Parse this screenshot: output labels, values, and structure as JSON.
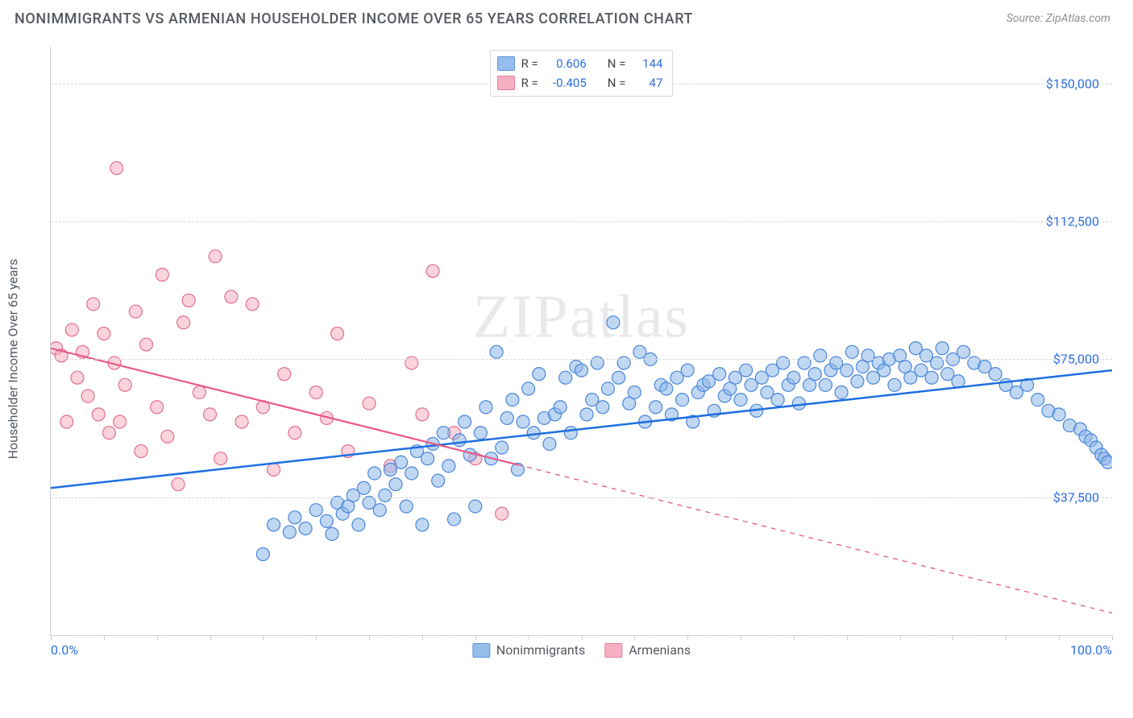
{
  "title": "NONIMMIGRANTS VS ARMENIAN HOUSEHOLDER INCOME OVER 65 YEARS CORRELATION CHART",
  "source": "Source: ZipAtlas.com",
  "watermark": "ZIPatlas",
  "chart": {
    "type": "scatter",
    "xlim": [
      0,
      100
    ],
    "ylim": [
      0,
      160000
    ],
    "x_tick_count": 20,
    "x_tick_labels": {
      "0": "0.0%",
      "100": "100.0%"
    },
    "y_gridlines": [
      0,
      37500,
      75000,
      112500,
      150000
    ],
    "y_tick_labels": {
      "37500": "$37,500",
      "75000": "$75,000",
      "112500": "$112,500",
      "150000": "$150,000"
    },
    "ylabel": "Householder Income Over 65 years",
    "background_color": "#ffffff",
    "grid_color": "#d6d8db",
    "axis_color": "#c9ccd0",
    "marker_radius": 8,
    "marker_stroke_width": 1.2,
    "series": [
      {
        "name": "Nonimmigrants",
        "fill": "#8cb6ea",
        "fill_opacity": 0.55,
        "stroke": "#4a86d8",
        "r_label": "R =",
        "n_label": "N =",
        "R": "0.606",
        "N": "144",
        "trend": {
          "x1": 0,
          "y1": 40000,
          "x2": 100,
          "y2": 72000,
          "solid_to_x": 100,
          "color": "#1f6fe0",
          "width": 2.5
        },
        "points": [
          [
            20,
            22000
          ],
          [
            21,
            30000
          ],
          [
            22.5,
            28000
          ],
          [
            23,
            32000
          ],
          [
            24,
            29000
          ],
          [
            25,
            34000
          ],
          [
            26,
            31000
          ],
          [
            26.5,
            27500
          ],
          [
            27,
            36000
          ],
          [
            27.5,
            33000
          ],
          [
            28,
            35000
          ],
          [
            28.5,
            38000
          ],
          [
            29,
            30000
          ],
          [
            29.5,
            40000
          ],
          [
            30,
            36000
          ],
          [
            30.5,
            44000
          ],
          [
            31,
            34000
          ],
          [
            31.5,
            38000
          ],
          [
            32,
            45000
          ],
          [
            32.5,
            41000
          ],
          [
            33,
            47000
          ],
          [
            33.5,
            35000
          ],
          [
            34,
            44000
          ],
          [
            34.5,
            50000
          ],
          [
            35,
            30000
          ],
          [
            35.5,
            48000
          ],
          [
            36,
            52000
          ],
          [
            36.5,
            42000
          ],
          [
            37,
            55000
          ],
          [
            37.5,
            46000
          ],
          [
            38,
            31500
          ],
          [
            38.5,
            53000
          ],
          [
            39,
            58000
          ],
          [
            39.5,
            49000
          ],
          [
            40,
            35000
          ],
          [
            40.5,
            55000
          ],
          [
            41,
            62000
          ],
          [
            41.5,
            48000
          ],
          [
            42,
            77000
          ],
          [
            42.5,
            51000
          ],
          [
            43,
            59000
          ],
          [
            43.5,
            64000
          ],
          [
            44,
            45000
          ],
          [
            44.5,
            58000
          ],
          [
            45,
            67000
          ],
          [
            45.5,
            55000
          ],
          [
            46,
            71000
          ],
          [
            46.5,
            59000
          ],
          [
            47,
            52000
          ],
          [
            47.5,
            60000
          ],
          [
            48,
            62000
          ],
          [
            48.5,
            70000
          ],
          [
            49,
            55000
          ],
          [
            49.5,
            73000
          ],
          [
            50,
            72000
          ],
          [
            50.5,
            60000
          ],
          [
            51,
            64000
          ],
          [
            51.5,
            74000
          ],
          [
            52,
            62000
          ],
          [
            52.5,
            67000
          ],
          [
            53,
            85000
          ],
          [
            53.5,
            70000
          ],
          [
            54,
            74000
          ],
          [
            54.5,
            63000
          ],
          [
            55,
            66000
          ],
          [
            55.5,
            77000
          ],
          [
            56,
            58000
          ],
          [
            56.5,
            75000
          ],
          [
            57,
            62000
          ],
          [
            57.5,
            68000
          ],
          [
            58,
            67000
          ],
          [
            58.5,
            60000
          ],
          [
            59,
            70000
          ],
          [
            59.5,
            64000
          ],
          [
            60,
            72000
          ],
          [
            60.5,
            58000
          ],
          [
            61,
            66000
          ],
          [
            61.5,
            68000
          ],
          [
            62,
            69000
          ],
          [
            62.5,
            61000
          ],
          [
            63,
            71000
          ],
          [
            63.5,
            65000
          ],
          [
            64,
            67000
          ],
          [
            64.5,
            70000
          ],
          [
            65,
            64000
          ],
          [
            65.5,
            72000
          ],
          [
            66,
            68000
          ],
          [
            66.5,
            61000
          ],
          [
            67,
            70000
          ],
          [
            67.5,
            66000
          ],
          [
            68,
            72000
          ],
          [
            68.5,
            64000
          ],
          [
            69,
            74000
          ],
          [
            69.5,
            68000
          ],
          [
            70,
            70000
          ],
          [
            70.5,
            63000
          ],
          [
            71,
            74000
          ],
          [
            71.5,
            68000
          ],
          [
            72,
            71000
          ],
          [
            72.5,
            76000
          ],
          [
            73,
            68000
          ],
          [
            73.5,
            72000
          ],
          [
            74,
            74000
          ],
          [
            74.5,
            66000
          ],
          [
            75,
            72000
          ],
          [
            75.5,
            77000
          ],
          [
            76,
            69000
          ],
          [
            76.5,
            73000
          ],
          [
            77,
            76000
          ],
          [
            77.5,
            70000
          ],
          [
            78,
            74000
          ],
          [
            78.5,
            72000
          ],
          [
            79,
            75000
          ],
          [
            79.5,
            68000
          ],
          [
            80,
            76000
          ],
          [
            80.5,
            73000
          ],
          [
            81,
            70000
          ],
          [
            81.5,
            78000
          ],
          [
            82,
            72000
          ],
          [
            82.5,
            76000
          ],
          [
            83,
            70000
          ],
          [
            83.5,
            74000
          ],
          [
            84,
            78000
          ],
          [
            84.5,
            71000
          ],
          [
            85,
            75000
          ],
          [
            85.5,
            69000
          ],
          [
            86,
            77000
          ],
          [
            87,
            74000
          ],
          [
            88,
            73000
          ],
          [
            89,
            71000
          ],
          [
            90,
            68000
          ],
          [
            91,
            66000
          ],
          [
            92,
            68000
          ],
          [
            93,
            64000
          ],
          [
            94,
            61000
          ],
          [
            95,
            60000
          ],
          [
            96,
            57000
          ],
          [
            97,
            56000
          ],
          [
            97.5,
            54000
          ],
          [
            98,
            53000
          ],
          [
            98.5,
            51000
          ],
          [
            99,
            49000
          ],
          [
            99.3,
            48000
          ],
          [
            99.6,
            47000
          ]
        ]
      },
      {
        "name": "Armenians",
        "fill": "#f6a8bc",
        "fill_opacity": 0.5,
        "stroke": "#e06f91",
        "r_label": "R =",
        "n_label": "N =",
        "R": "-0.405",
        "N": "47",
        "trend": {
          "x1": 0,
          "y1": 78000,
          "x2": 100,
          "y2": 6000,
          "solid_to_x": 44,
          "color": "#e65a87",
          "width": 2.2
        },
        "points": [
          [
            0.5,
            78000
          ],
          [
            1,
            76000
          ],
          [
            1.5,
            58000
          ],
          [
            2,
            83000
          ],
          [
            2.5,
            70000
          ],
          [
            3,
            77000
          ],
          [
            3.5,
            65000
          ],
          [
            4,
            90000
          ],
          [
            4.5,
            60000
          ],
          [
            5,
            82000
          ],
          [
            5.5,
            55000
          ],
          [
            6,
            74000
          ],
          [
            6.2,
            127000
          ],
          [
            6.5,
            58000
          ],
          [
            7,
            68000
          ],
          [
            8,
            88000
          ],
          [
            8.5,
            50000
          ],
          [
            9,
            79000
          ],
          [
            10,
            62000
          ],
          [
            10.5,
            98000
          ],
          [
            11,
            54000
          ],
          [
            12,
            41000
          ],
          [
            12.5,
            85000
          ],
          [
            13,
            91000
          ],
          [
            14,
            66000
          ],
          [
            15,
            60000
          ],
          [
            15.5,
            103000
          ],
          [
            16,
            48000
          ],
          [
            17,
            92000
          ],
          [
            18,
            58000
          ],
          [
            19,
            90000
          ],
          [
            20,
            62000
          ],
          [
            21,
            45000
          ],
          [
            22,
            71000
          ],
          [
            23,
            55000
          ],
          [
            25,
            66000
          ],
          [
            26,
            59000
          ],
          [
            27,
            82000
          ],
          [
            28,
            50000
          ],
          [
            30,
            63000
          ],
          [
            32,
            46000
          ],
          [
            34,
            74000
          ],
          [
            35,
            60000
          ],
          [
            36,
            99000
          ],
          [
            38,
            55000
          ],
          [
            40,
            48000
          ],
          [
            42.5,
            33000
          ]
        ]
      }
    ]
  }
}
